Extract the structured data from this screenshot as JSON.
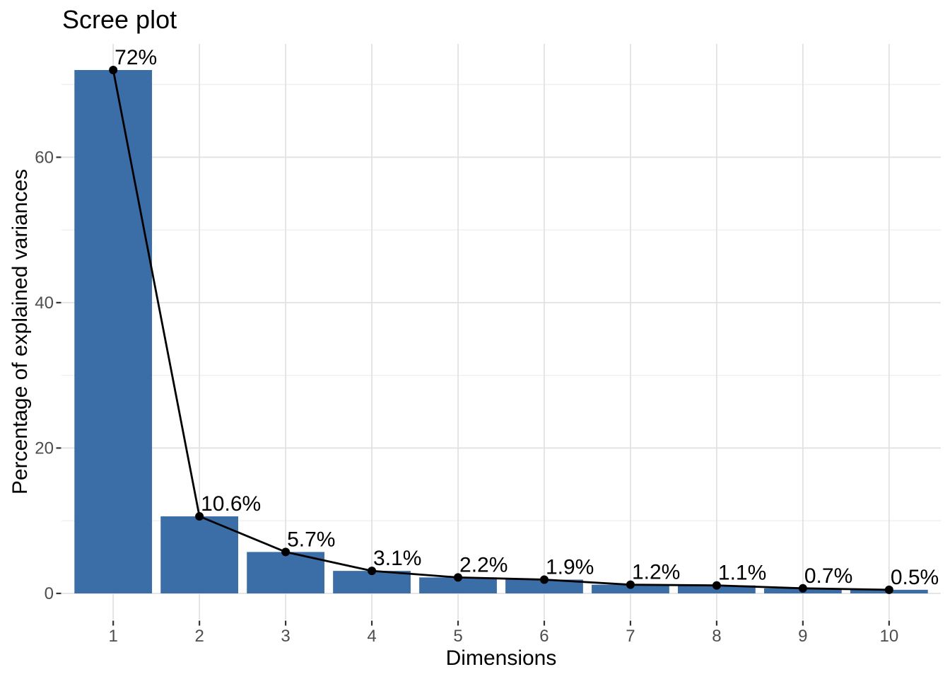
{
  "chart_data": {
    "type": "bar",
    "title": "Scree plot",
    "xlabel": "Dimensions",
    "ylabel": "Percentage of explained variances",
    "categories": [
      "1",
      "2",
      "3",
      "4",
      "5",
      "6",
      "7",
      "8",
      "9",
      "10"
    ],
    "values": [
      72,
      10.6,
      5.7,
      3.1,
      2.2,
      1.9,
      1.2,
      1.1,
      0.7,
      0.5
    ],
    "point_labels": [
      "72%",
      "10.6%",
      "5.7%",
      "3.1%",
      "2.2%",
      "1.9%",
      "1.2%",
      "1.1%",
      "0.7%",
      "0.5%"
    ],
    "overlay": "line+points",
    "yticks": [
      0,
      20,
      40,
      60
    ],
    "yticks_minor": [
      10,
      30,
      50,
      70
    ],
    "ylim": [
      -3.6,
      75.6
    ],
    "grid": "major+minor",
    "legend": "none",
    "colors": {
      "bar": "#3B6DA6",
      "line": "#000000",
      "point": "#000000",
      "label_text": "#000000",
      "tick_text": "#4D4D4D",
      "axis_tick": "#333333",
      "grid_major": "#E2E2E2",
      "grid_minor": "#F0F0F0",
      "background": "#FFFFFF"
    }
  }
}
